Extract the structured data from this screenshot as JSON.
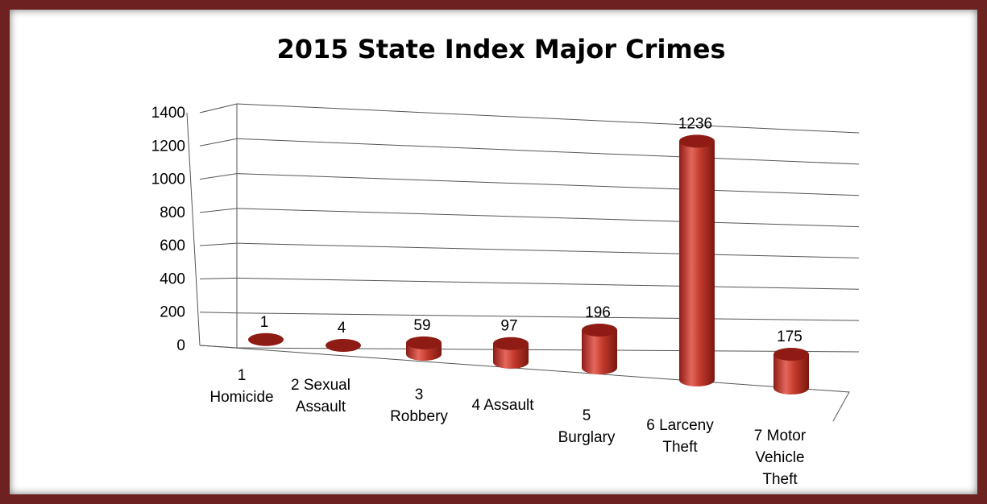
{
  "chart_data": {
    "type": "bar",
    "title": "2015 State Index Major Crimes",
    "xlabel": "",
    "ylabel": "",
    "ylim": [
      0,
      1400
    ],
    "yticks": [
      0,
      200,
      400,
      600,
      800,
      1000,
      1200,
      1400
    ],
    "categories": [
      [
        "1",
        "Homicide"
      ],
      [
        "2 Sexual",
        "Assault"
      ],
      [
        "3",
        "Robbery"
      ],
      [
        "4 Assault"
      ],
      [
        "5",
        "Burglary"
      ],
      [
        "6 Larceny",
        "Theft"
      ],
      [
        "7 Motor",
        "Vehicle",
        "Theft"
      ]
    ],
    "values": [
      1,
      4,
      59,
      97,
      196,
      1236,
      175
    ],
    "grid": true,
    "legend": "none",
    "style": "3d-cylinder"
  },
  "colors": {
    "bar": "#c0392b",
    "bar_dark": "#8e1b14",
    "bar_light": "#e5675c",
    "frame": "#6e2220"
  }
}
